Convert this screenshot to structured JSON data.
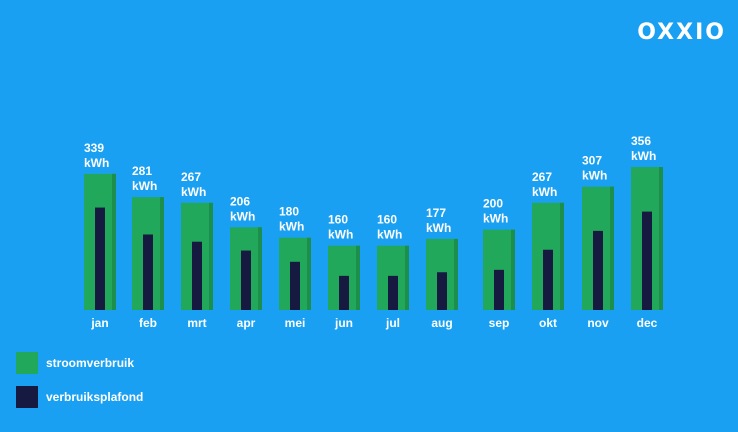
{
  "brand": {
    "logo_text": "OXXIO"
  },
  "colors": {
    "background": "#1aa0f2",
    "stroom": "#22a85a",
    "stroom_side": "#1b8f4b",
    "plafond": "#171a40"
  },
  "legend": [
    {
      "label": "stroomverbruik",
      "color": "#22a85a"
    },
    {
      "label": "verbruiksplafond",
      "color": "#171a40"
    }
  ],
  "chart_data": {
    "type": "bar",
    "title": "",
    "xlabel": "",
    "ylabel": "",
    "unit": "kWh",
    "categories": [
      "jan",
      "feb",
      "mrt",
      "apr",
      "mei",
      "jun",
      "jul",
      "aug",
      "sep",
      "okt",
      "nov",
      "dec"
    ],
    "series": [
      {
        "name": "stroomverbruik",
        "values": [
          339,
          281,
          267,
          206,
          180,
          160,
          160,
          177,
          200,
          267,
          307,
          356
        ]
      },
      {
        "name": "verbruiksplafond",
        "values": [
          255,
          188,
          170,
          148,
          120,
          85,
          85,
          94,
          100,
          150,
          197,
          245
        ]
      }
    ],
    "data_labels": [
      "339",
      "281",
      "267",
      "206",
      "180",
      "160",
      "160",
      "177",
      "200",
      "267",
      "307",
      "356"
    ],
    "ylim": [
      0,
      356
    ],
    "grid": false,
    "legend_position": "bottom-left"
  }
}
